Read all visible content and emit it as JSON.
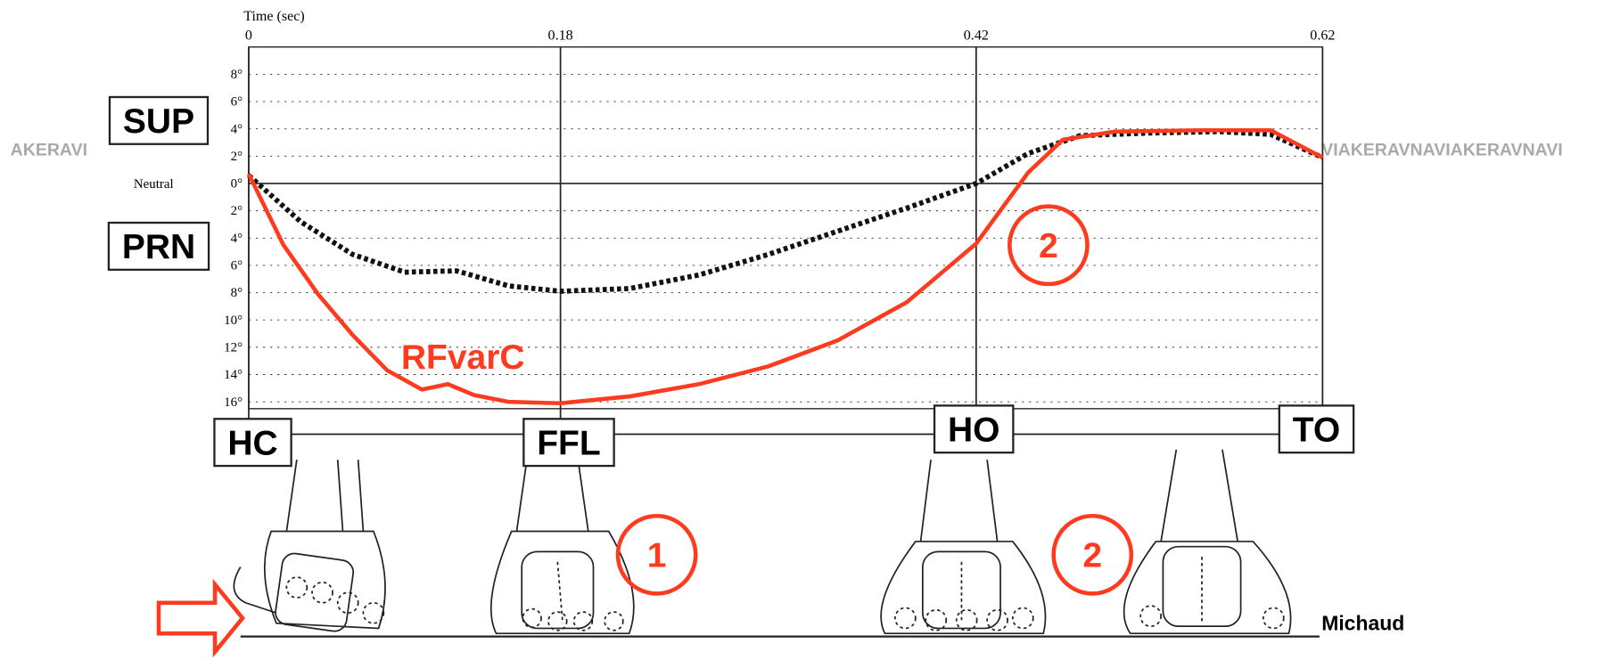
{
  "chart_data": {
    "type": "line",
    "x_label": "Time (sec)",
    "neutral_label": "Neutral",
    "xlim": [
      0,
      0.62
    ],
    "xticks": [
      0,
      0.18,
      0.42,
      0.62
    ],
    "ylim": [
      -16.5,
      10
    ],
    "yticks": [
      {
        "value": 8,
        "label": "8°"
      },
      {
        "value": 6,
        "label": "6°"
      },
      {
        "value": 4,
        "label": "4°"
      },
      {
        "value": 2,
        "label": "2°"
      },
      {
        "value": 0,
        "label": "0°"
      },
      {
        "value": -2,
        "label": "2°"
      },
      {
        "value": -4,
        "label": "4°"
      },
      {
        "value": -6,
        "label": "6°"
      },
      {
        "value": -8,
        "label": "8°"
      },
      {
        "value": -10,
        "label": "10°"
      },
      {
        "value": -12,
        "label": "12°"
      },
      {
        "value": -14,
        "label": "14°"
      },
      {
        "value": -16,
        "label": "16°"
      }
    ],
    "grid": true,
    "side_labels": [
      "SUP",
      "PRN"
    ],
    "phase_labels": [
      "HC",
      "FFL",
      "HO",
      "TO"
    ],
    "circle_labels": [
      "2",
      "1",
      "2"
    ],
    "credit": "Michaud",
    "watermark": [
      "AKERAVI",
      "VIAKERAVNAVIAKERAVNAVI"
    ],
    "series": [
      {
        "color": "#111111",
        "style": "dashed",
        "x": [
          0,
          0.03,
          0.06,
          0.09,
          0.12,
          0.15,
          0.18,
          0.22,
          0.26,
          0.3,
          0.34,
          0.38,
          0.42,
          0.45,
          0.48,
          0.52,
          0.56,
          0.59,
          0.62
        ],
        "values": [
          0.6,
          -2.8,
          -5.2,
          -6.5,
          -6.4,
          -7.5,
          -7.9,
          -7.7,
          -6.7,
          -5.2,
          -3.5,
          -1.8,
          0,
          2.2,
          3.5,
          3.7,
          3.8,
          3.6,
          1.9
        ]
      },
      {
        "name": "RFvarC",
        "color": "#ff3b1f",
        "style": "solid",
        "x": [
          0,
          0.02,
          0.04,
          0.06,
          0.08,
          0.1,
          0.115,
          0.13,
          0.15,
          0.18,
          0.22,
          0.26,
          0.3,
          0.34,
          0.38,
          0.42,
          0.45,
          0.47,
          0.5,
          0.55,
          0.59,
          0.62
        ],
        "values": [
          0.7,
          -4.5,
          -8.1,
          -11.1,
          -13.7,
          -15.1,
          -14.7,
          -15.5,
          -16,
          -16.1,
          -15.6,
          -14.7,
          -13.4,
          -11.5,
          -8.7,
          -4.4,
          0.8,
          3.2,
          3.8,
          3.9,
          3.9,
          1.9
        ]
      }
    ]
  }
}
